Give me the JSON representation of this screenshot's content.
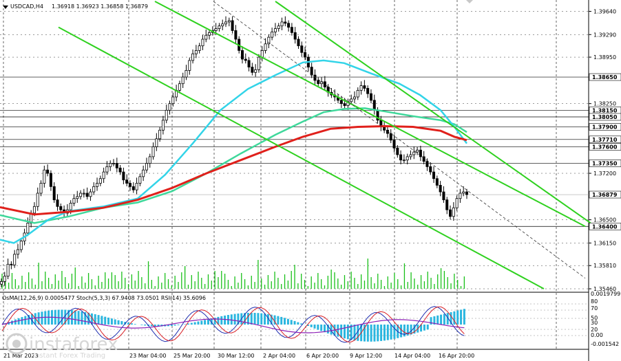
{
  "header": {
    "symbol": "USDCAD,H4",
    "ohlc": "1.36918 1.36923 1.36858 1.36879",
    "osc": "OsMA(12,26,9) 0.0005477  Stoch(5,3,3) 67.9408 73.0501  RSI(14) 35.6096"
  },
  "watermark": {
    "brand": "instaforex",
    "tagline": "Instant Forex Trading"
  },
  "colors": {
    "up": "#000000",
    "down": "#000000",
    "ma_red": "#e0201b",
    "ma_cyan": "#32d4e8",
    "ma_green": "#3fd89b",
    "channel": "#2fd11f",
    "grid": "#000000",
    "volume": "#19c019",
    "osma": "#2ab6df",
    "stoch_main": "#1f2fb0",
    "stoch_signal": "#d81f25",
    "rsi": "#8c1fb5"
  },
  "chart_data": {
    "type": "candlestick",
    "ylim": [
      1.3546,
      1.3979
    ],
    "y_ticks": [
      "1.39640",
      "1.39290",
      "1.38950",
      "1.38250",
      "1.37200",
      "1.36500",
      "1.36150",
      "1.35810",
      "1.35460"
    ],
    "levels": [
      {
        "value": 1.3865,
        "label": "1.38650"
      },
      {
        "value": 1.3815,
        "label": "1.38150"
      },
      {
        "value": 1.3805,
        "label": "1.38050"
      },
      {
        "value": 1.379,
        "label": "1.37900"
      },
      {
        "value": 1.3771,
        "label": "1.37710"
      },
      {
        "value": 1.376,
        "label": "1.37600"
      },
      {
        "value": 1.3735,
        "label": "1.37350"
      },
      {
        "value": 1.364,
        "label": "1.36400"
      }
    ],
    "current_price": {
      "value": 1.36879,
      "label": "1.36879"
    },
    "x_labels": [
      "21 Mar 2023",
      "23 Mar 04:00",
      "25 Mar 20:00",
      "30 Mar 12:00",
      "2 Apr 04:00",
      "6 Apr 20:00",
      "9 Apr 12:00",
      "14 Apr 04:00",
      "16 Apr 20:00"
    ],
    "candles": [
      1.3557,
      1.3565,
      1.3583,
      1.3582,
      1.3598,
      1.3605,
      1.3618,
      1.363,
      1.3645,
      1.366,
      1.367,
      1.369,
      1.3705,
      1.3725,
      1.372,
      1.37,
      1.368,
      1.367,
      1.3665,
      1.366,
      1.3665,
      1.3675,
      1.3682,
      1.3685,
      1.369,
      1.369,
      1.3685,
      1.3692,
      1.37,
      1.3705,
      1.3712,
      1.3722,
      1.373,
      1.3735,
      1.3735,
      1.3728,
      1.3722,
      1.371,
      1.3705,
      1.37,
      1.3695,
      1.3705,
      1.3715,
      1.3725,
      1.3735,
      1.3745,
      1.376,
      1.3772,
      1.3785,
      1.38,
      1.3815,
      1.3825,
      1.3835,
      1.3845,
      1.3855,
      1.3865,
      1.3875,
      1.389,
      1.39,
      1.3905,
      1.3912,
      1.3922,
      1.3928,
      1.3932,
      1.3935,
      1.3938,
      1.3942,
      1.3945,
      1.3948,
      1.395,
      1.3935,
      1.3922,
      1.3905,
      1.3892,
      1.389,
      1.388,
      1.3872,
      1.3876,
      1.3895,
      1.3905,
      1.3915,
      1.3925,
      1.3933,
      1.3938,
      1.3942,
      1.3948,
      1.3946,
      1.394,
      1.3932,
      1.3922,
      1.3912,
      1.3902,
      1.3895,
      1.388,
      1.3868,
      1.386,
      1.3855,
      1.3858,
      1.385,
      1.3842,
      1.3838,
      1.3835,
      1.383,
      1.3825,
      1.3822,
      1.3828,
      1.3832,
      1.3835,
      1.3845,
      1.3852,
      1.3848,
      1.384,
      1.383,
      1.3815,
      1.38,
      1.379,
      1.3785,
      1.378,
      1.377,
      1.3758,
      1.3748,
      1.374,
      1.374,
      1.3745,
      1.3748,
      1.3752,
      1.3755,
      1.3745,
      1.3738,
      1.373,
      1.3722,
      1.3712,
      1.3702,
      1.3692,
      1.368,
      1.3665,
      1.3655,
      1.3668,
      1.3682,
      1.369,
      1.3692,
      1.3688
    ],
    "ma_red": [
      [
        0,
        1.3669
      ],
      [
        50,
        1.3658
      ],
      [
        100,
        1.3662
      ],
      [
        150,
        1.3668
      ],
      [
        200,
        1.368
      ],
      [
        250,
        1.3698
      ],
      [
        300,
        1.372
      ],
      [
        350,
        1.374
      ],
      [
        400,
        1.376
      ],
      [
        440,
        1.3775
      ],
      [
        480,
        1.3787
      ],
      [
        520,
        1.379
      ],
      [
        560,
        1.3791
      ],
      [
        600,
        1.379
      ],
      [
        640,
        1.3784
      ],
      [
        660,
        1.3775
      ],
      [
        678,
        1.377
      ]
    ],
    "ma_cyan": [
      [
        0,
        1.362
      ],
      [
        20,
        1.3615
      ],
      [
        40,
        1.3627
      ],
      [
        70,
        1.365
      ],
      [
        100,
        1.3663
      ],
      [
        150,
        1.367
      ],
      [
        200,
        1.3682
      ],
      [
        240,
        1.3718
      ],
      [
        280,
        1.3765
      ],
      [
        320,
        1.3815
      ],
      [
        360,
        1.3847
      ],
      [
        400,
        1.3868
      ],
      [
        440,
        1.3887
      ],
      [
        470,
        1.389
      ],
      [
        500,
        1.3886
      ],
      [
        540,
        1.387
      ],
      [
        580,
        1.3855
      ],
      [
        610,
        1.3838
      ],
      [
        640,
        1.3815
      ],
      [
        660,
        1.379
      ],
      [
        678,
        1.3765
      ]
    ],
    "ma_green": [
      [
        0,
        1.3657
      ],
      [
        50,
        1.3645
      ],
      [
        100,
        1.3655
      ],
      [
        150,
        1.3668
      ],
      [
        200,
        1.3676
      ],
      [
        250,
        1.3693
      ],
      [
        300,
        1.372
      ],
      [
        350,
        1.375
      ],
      [
        400,
        1.3778
      ],
      [
        440,
        1.3798
      ],
      [
        470,
        1.3812
      ],
      [
        500,
        1.3817
      ],
      [
        530,
        1.3818
      ],
      [
        560,
        1.3813
      ],
      [
        600,
        1.3806
      ],
      [
        640,
        1.38
      ],
      [
        660,
        1.3794
      ],
      [
        678,
        1.3782
      ]
    ],
    "channel_lines": [
      [
        [
          225,
          1.3979
        ],
        [
          850,
          1.364
        ]
      ],
      [
        [
          85,
          1.394
        ],
        [
          790,
          1.3546
        ]
      ],
      [
        [
          400,
          1.3979
        ],
        [
          858,
          1.3645
        ]
      ]
    ],
    "trend_dashed": [
      [
        310,
        1.3979
      ],
      [
        850,
        1.3562
      ]
    ],
    "osc_labels": [
      "0.0019799",
      "80",
      "70",
      "50",
      "30",
      "20",
      "0.00",
      "-0.001542"
    ]
  }
}
